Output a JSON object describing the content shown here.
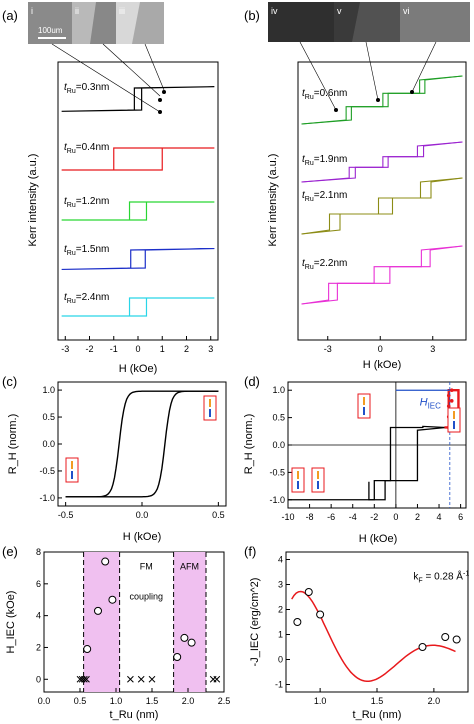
{
  "panel_labels": {
    "a": "(a)",
    "b": "(b)",
    "c": "(c)",
    "d": "(d)",
    "e": "(e)",
    "f": "(f)"
  },
  "micrographs": {
    "a": {
      "tiles": [
        "i",
        "ii",
        "iii"
      ],
      "scale_bar": "100um"
    },
    "b": {
      "tiles": [
        "iv",
        "v",
        "vi"
      ]
    }
  },
  "chart_data": [
    {
      "id": "a",
      "type": "line",
      "xlabel": "H (kOe)",
      "ylabel": "Kerr intensity (a.u.)",
      "xlim": [
        -3.3,
        3.3
      ],
      "xticks": [
        -3,
        -2,
        -1,
        0,
        1,
        2,
        3
      ],
      "series": [
        {
          "name": "t_Ru=0.3nm",
          "label": "=0.3nm",
          "color": "#000000",
          "loops": [
            {
              "hc": 0.0,
              "w": 0.15
            }
          ],
          "tail": 0.06
        },
        {
          "name": "t_Ru=0.4nm",
          "label": "=0.4nm",
          "color": "#e8191c",
          "loops": [
            {
              "hc": 0.0,
              "w": 1.0
            }
          ],
          "tail": 0.0
        },
        {
          "name": "t_Ru=1.2nm",
          "label": "=1.2nm",
          "color": "#29d633",
          "loops": [
            {
              "hc": 0.0,
              "w": 0.35
            }
          ],
          "tail": 0.0
        },
        {
          "name": "t_Ru=1.5nm",
          "label": "=1.5nm",
          "color": "#1c2fc9",
          "loops": [
            {
              "hc": 0.0,
              "w": 0.3
            }
          ],
          "tail": 0.08
        },
        {
          "name": "t_Ru=2.4nm",
          "label": "=2.4nm",
          "color": "#29d5e8",
          "loops": [
            {
              "hc": 0.0,
              "w": 0.35
            }
          ],
          "tail": 0.0
        }
      ]
    },
    {
      "id": "b",
      "type": "line",
      "xlabel": "H (kOe)",
      "ylabel": "Kerr intensity (a.u.)",
      "xlim": [
        -4.7,
        4.9
      ],
      "xticks": [
        -3,
        0,
        3
      ],
      "series": [
        {
          "name": "t_Ru=0.6nm",
          "label": "=0.6nm",
          "color": "#1e9e25",
          "steps": [
            {
              "h": -1.8,
              "d": 0.3
            },
            {
              "h": 0.3,
              "d": 0.3
            },
            {
              "h": 2.4,
              "d": 0.3
            }
          ]
        },
        {
          "name": "t_Ru=1.9nm",
          "label": "=1.9nm",
          "color": "#9b24d0",
          "steps": [
            {
              "h": -1.6,
              "d": 0.35
            },
            {
              "h": 0.3,
              "d": 0.3
            },
            {
              "h": 2.3,
              "d": 0.35
            }
          ]
        },
        {
          "name": "t_Ru=2.1nm",
          "label": "=2.1nm",
          "color": "#8c8c16",
          "steps": [
            {
              "h": -2.6,
              "d": 0.6
            },
            {
              "h": 0.3,
              "d": 0.8
            },
            {
              "h": 2.6,
              "d": 0.6
            }
          ]
        },
        {
          "name": "t_Ru=2.2nm",
          "label": "=2.2nm",
          "color": "#e830d5",
          "steps": [
            {
              "h": -2.7,
              "d": 0.5
            },
            {
              "h": 0.1,
              "d": 0.9
            },
            {
              "h": 2.6,
              "d": 0.5
            }
          ]
        }
      ]
    },
    {
      "id": "c",
      "type": "line",
      "xlabel": "H (kOe)",
      "ylabel": "R_H (norm.)",
      "xlim": [
        -0.55,
        0.55
      ],
      "ylim": [
        -1.15,
        1.15
      ],
      "xticks": [
        -0.5,
        0.0,
        0.5
      ],
      "yticks": [
        -1.0,
        -0.5,
        0.0,
        0.5,
        1.0
      ],
      "loop": {
        "hc": 0.15,
        "width": 0.04,
        "sat": 0.98
      },
      "color": "#000000"
    },
    {
      "id": "d",
      "type": "line",
      "xlabel": "H (kOe)",
      "ylabel": "R_H (norm.)",
      "xlim": [
        -10,
        6.5
      ],
      "ylim": [
        -1.15,
        1.15
      ],
      "xticks": [
        -10,
        -8,
        -6,
        -4,
        -2,
        0,
        2,
        4,
        6
      ],
      "yticks": [
        -1.0,
        -0.5,
        0.0,
        0.5,
        1.0
      ],
      "black": {
        "plateaus": [
          -1.0,
          -0.65,
          0.32,
          1.0
        ],
        "switch_down": [
          -2.5,
          -1.0,
          2.5
        ],
        "switch_up": [
          -2.0,
          -0.5,
          2.0
        ]
      },
      "minor": {
        "from": 4.5,
        "to": 5.8,
        "levels": [
          0.32,
          1.0
        ],
        "color": "#e8191c"
      },
      "annotation": {
        "text": "H",
        "sub": "IEC",
        "x0": 0,
        "x1": 5.0,
        "y": 1.0
      },
      "color": "#000000"
    },
    {
      "id": "e",
      "type": "scatter",
      "xlabel": "t_Ru (nm)",
      "ylabel": "H_IEC (kOe)",
      "xlim": [
        0.0,
        2.5
      ],
      "ylim": [
        -0.8,
        8.0
      ],
      "xticks": [
        0.0,
        0.5,
        1.0,
        1.5,
        2.0,
        2.5
      ],
      "yticks": [
        0,
        2,
        4,
        6,
        8
      ],
      "points": [
        [
          0.6,
          1.9
        ],
        [
          0.75,
          4.3
        ],
        [
          0.85,
          7.4
        ],
        [
          0.95,
          5.0
        ],
        [
          1.85,
          1.4
        ],
        [
          1.95,
          2.6
        ],
        [
          2.05,
          2.3
        ]
      ],
      "zero_points": [
        0.5,
        0.53,
        0.56,
        0.59,
        1.2,
        1.35,
        1.5,
        2.35,
        2.4
      ],
      "bands": [
        [
          0.55,
          1.05
        ],
        [
          1.8,
          2.25
        ]
      ],
      "band_labels": {
        "fm": "FM",
        "coupling": "coupling",
        "afm": "AFM"
      }
    },
    {
      "id": "f",
      "type": "scatter",
      "xlabel": "t_Ru (nm)",
      "ylabel": "-J_IEC (erg/cm^2)",
      "xlim": [
        0.7,
        2.3
      ],
      "ylim": [
        -1.3,
        4.3
      ],
      "xticks": [
        1.0,
        1.5,
        2.0
      ],
      "yticks": [
        -1,
        0,
        1,
        2,
        3,
        4
      ],
      "points": [
        [
          0.8,
          1.5
        ],
        [
          0.9,
          2.7
        ],
        [
          1.0,
          1.8
        ],
        [
          1.9,
          0.5
        ],
        [
          2.1,
          0.9
        ],
        [
          2.2,
          0.8
        ]
      ],
      "fit": {
        "A": 2.7,
        "kF": 0.28,
        "t0": 0.9,
        "phase": 0.4
      },
      "annotation": "k_F = 0.28 Å^-1",
      "color": "#e8191c"
    }
  ],
  "text": {
    "a_labels": [
      "=0.3nm",
      "=0.4nm",
      "=1.2nm",
      "=1.5nm",
      "=2.4nm"
    ],
    "b_labels": [
      "=0.6nm",
      "=1.9nm",
      "=2.1nm",
      "=2.2nm"
    ],
    "t_ru_sym": "t",
    "t_ru_sub": "Ru",
    "h_iec_label": "H",
    "h_iec_sub": "IEC",
    "kf_text": "k",
    "kf_sub": "F",
    "kf_value": " = 0.28 Å",
    "kf_exp": "-1"
  }
}
